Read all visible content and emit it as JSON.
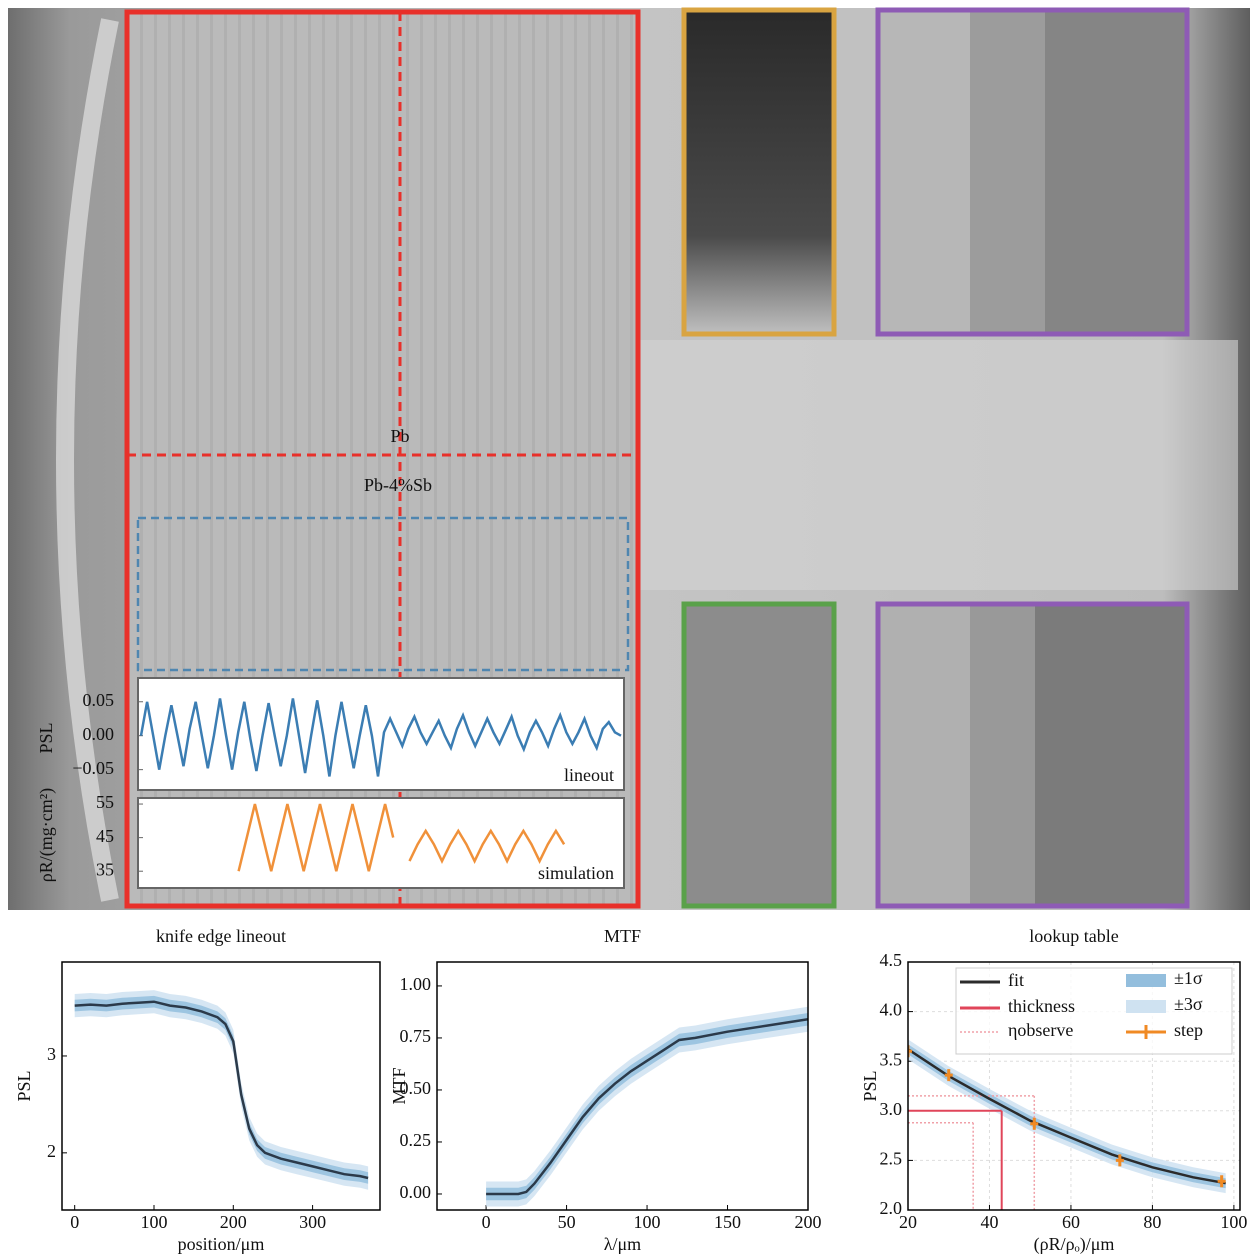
{
  "image": {
    "labels": {
      "upper": "Pb",
      "lower": "Pb-4%Sb"
    }
  },
  "chart_data": [
    {
      "type": "line",
      "annotation": "lineout",
      "ylabel": "PSL",
      "color": "#3b7db3",
      "ylim": [
        -0.08,
        0.085
      ],
      "yticks": [
        0.05,
        {
          "value": 0,
          "label": "0.00"
        },
        {
          "value": -0.05,
          "label": "−0.05"
        }
      ],
      "values": [
        0,
        0.05,
        0,
        -0.05,
        0,
        0.045,
        0,
        -0.045,
        0.01,
        0.05,
        0,
        -0.048,
        0,
        0.055,
        0,
        -0.05,
        0.005,
        0.05,
        -0.005,
        -0.052,
        0,
        0.048,
        0,
        -0.045,
        0,
        0.055,
        0,
        -0.055,
        0,
        0.052,
        0,
        -0.06,
        0,
        0.05,
        0,
        -0.048,
        0,
        0.045,
        0,
        -0.06,
        0.005,
        0.025,
        0.005,
        -0.015,
        0.01,
        0.028,
        0.005,
        -0.012,
        0.005,
        0.022,
        0,
        -0.018,
        0.01,
        0.03,
        0.005,
        -0.015,
        0.005,
        0.025,
        0.005,
        -0.012,
        0.008,
        0.028,
        0,
        -0.02,
        0.005,
        0.022,
        0.005,
        -0.015,
        0.01,
        0.03,
        0.005,
        -0.012,
        0.005,
        0.025,
        0,
        -0.018,
        0.01,
        0.02,
        0.005,
        0
      ]
    },
    {
      "type": "line",
      "annotation": "simulation",
      "ylabel": "ρR/(mg·cm²)",
      "color": "#f0913a",
      "ylim": [
        30,
        56.8
      ],
      "yticks": [
        55,
        45,
        35
      ],
      "values": [
        null,
        null,
        null,
        null,
        null,
        null,
        null,
        null,
        null,
        null,
        null,
        null,
        35,
        45,
        55,
        45,
        35,
        45,
        55,
        45,
        35,
        45,
        55,
        45,
        35,
        45,
        55,
        45,
        35,
        45,
        55,
        45,
        null,
        38,
        43,
        47,
        43,
        38,
        43,
        47,
        43,
        38,
        43,
        47,
        43,
        38,
        43,
        47,
        43,
        38,
        43,
        47,
        43,
        null,
        null,
        null,
        null,
        null,
        null,
        null
      ]
    },
    {
      "type": "line",
      "title": "knife edge lineout",
      "xlabel": "position/μm",
      "ylabel": "PSL",
      "xlim": [
        -16,
        385
      ],
      "ylim": [
        1.41,
        3.97
      ],
      "xticks": [
        0,
        100,
        200,
        300
      ],
      "yticks": [
        2,
        3
      ],
      "grid": false,
      "x": [
        0,
        20,
        40,
        60,
        80,
        100,
        120,
        140,
        160,
        180,
        190,
        200,
        210,
        220,
        230,
        240,
        260,
        280,
        300,
        320,
        340,
        360,
        370
      ],
      "series": [
        {
          "color": "#2b3a4a",
          "values": [
            3.52,
            3.53,
            3.52,
            3.54,
            3.55,
            3.56,
            3.52,
            3.5,
            3.46,
            3.4,
            3.33,
            3.15,
            2.6,
            2.25,
            2.08,
            2.0,
            1.94,
            1.9,
            1.86,
            1.82,
            1.78,
            1.76,
            1.74
          ]
        }
      ],
      "bands": [
        {
          "color": "#cfe2f1",
          "halfwidth": 0.12
        },
        {
          "color": "#93bedd",
          "halfwidth": 0.06
        }
      ]
    },
    {
      "type": "line",
      "title": "MTF",
      "xlabel": "λ/μm",
      "ylabel": "MTF",
      "xlim": [
        -30.5,
        200
      ],
      "ylim": [
        -0.077,
        1.115
      ],
      "xticks": [
        0,
        50,
        100,
        150,
        200
      ],
      "yticks": [
        {
          "value": 0,
          "label": "0.00"
        },
        {
          "value": 0.25,
          "label": "0.25"
        },
        {
          "value": 0.5,
          "label": "0.50"
        },
        {
          "value": 0.75,
          "label": "0.75"
        },
        {
          "value": 1,
          "label": "1.00"
        }
      ],
      "grid": false,
      "x": [
        0,
        10,
        20,
        25,
        30,
        40,
        50,
        60,
        70,
        80,
        90,
        100,
        110,
        120,
        130,
        150,
        175,
        200
      ],
      "series": [
        {
          "color": "#2b3a4a",
          "values": [
            0,
            0,
            0,
            0.01,
            0.05,
            0.15,
            0.26,
            0.37,
            0.46,
            0.53,
            0.59,
            0.64,
            0.69,
            0.74,
            0.75,
            0.78,
            0.81,
            0.84
          ]
        }
      ],
      "bands": [
        {
          "color": "#cfe2f1",
          "halfwidth": 0.06
        },
        {
          "color": "#93bedd",
          "halfwidth": 0.03
        }
      ]
    },
    {
      "type": "line",
      "title": "lookup table",
      "xlabel": "(ρR/ρₒ)/μm",
      "ylabel": "PSL",
      "xlim": [
        20,
        101.5
      ],
      "ylim": [
        2,
        4.5
      ],
      "xticks": [
        20,
        40,
        60,
        80,
        100
      ],
      "yticks": [
        {
          "value": 2,
          "label": "2.0"
        },
        2.5,
        {
          "value": 3,
          "label": "3.0"
        },
        3.5,
        {
          "value": 4,
          "label": "4.0"
        },
        4.5
      ],
      "grid": true,
      "legend": "upper right",
      "x": [
        20,
        30,
        40,
        50,
        60,
        70,
        80,
        90,
        98
      ],
      "series": [
        {
          "name": "fit",
          "color": "#2b2b2b",
          "values": [
            3.62,
            3.35,
            3.12,
            2.9,
            2.73,
            2.56,
            2.43,
            2.33,
            2.27
          ]
        }
      ],
      "bands": [
        {
          "name": "±3σ",
          "color": "#cfe2f1",
          "halfwidth": 0.1
        },
        {
          "name": "±1σ",
          "color": "#93bedd",
          "halfwidth": 0.05
        }
      ],
      "thickness": {
        "name": "thickness",
        "color": "#e0455a",
        "x": 43,
        "y": 3.0
      },
      "observe": {
        "name": "ηobserve",
        "color": "#f0a0a8",
        "x": [
          36,
          51
        ],
        "y": [
          2.88,
          3.15
        ]
      },
      "markers": {
        "name": "step",
        "color": "#f08a24",
        "x": [
          20,
          30,
          51,
          72,
          97
        ],
        "values": [
          3.6,
          3.36,
          2.87,
          2.5,
          2.29
        ]
      }
    }
  ]
}
